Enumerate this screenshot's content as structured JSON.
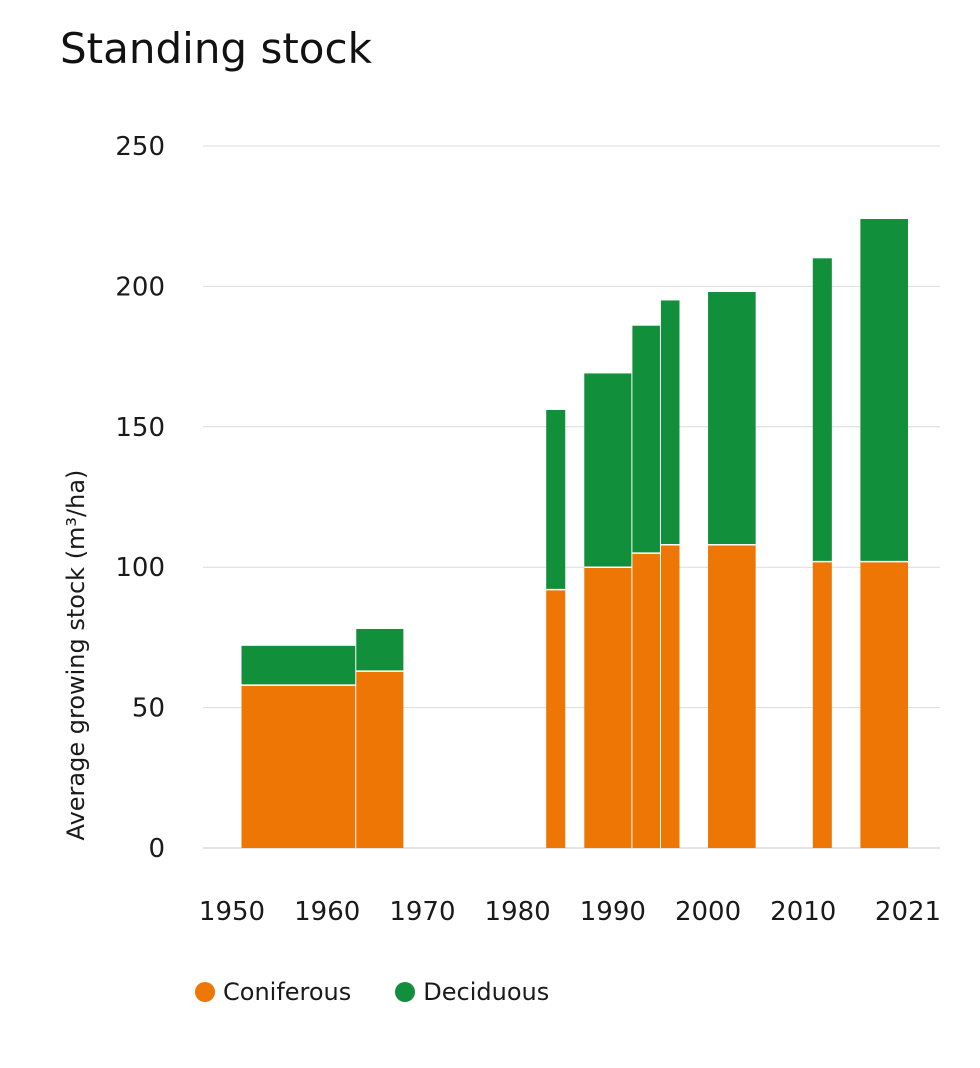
{
  "chart_data": {
    "type": "bar",
    "title": "Standing stock",
    "ylabel": "Average growing stock (m³/ha)",
    "xlabel": "",
    "ylim": [
      0,
      250
    ],
    "yticks": [
      0,
      50,
      100,
      150,
      200,
      250
    ],
    "xticks": [
      "1950",
      "1960",
      "1970",
      "1980",
      "1990",
      "2000",
      "2010",
      "2021"
    ],
    "stacked": true,
    "grid": true,
    "legend_position": "bottom-left",
    "segments": [
      {
        "start": 1951,
        "end": 1963,
        "coniferous": 58,
        "deciduous": 14
      },
      {
        "start": 1963,
        "end": 1968,
        "coniferous": 63,
        "deciduous": 15
      },
      {
        "start": 1983,
        "end": 1985,
        "coniferous": 92,
        "deciduous": 64
      },
      {
        "start": 1987,
        "end": 1992,
        "coniferous": 100,
        "deciduous": 69
      },
      {
        "start": 1992,
        "end": 1995,
        "coniferous": 105,
        "deciduous": 81
      },
      {
        "start": 1995,
        "end": 1997,
        "coniferous": 108,
        "deciduous": 87
      },
      {
        "start": 2000,
        "end": 2005,
        "coniferous": 108,
        "deciduous": 90
      },
      {
        "start": 2011,
        "end": 2013,
        "coniferous": 102,
        "deciduous": 108
      },
      {
        "start": 2016,
        "end": 2021,
        "coniferous": 102,
        "deciduous": 122
      }
    ],
    "series": [
      {
        "name": "Coniferous",
        "color": "#ee7604"
      },
      {
        "name": "Deciduous",
        "color": "#118f3b"
      }
    ]
  }
}
